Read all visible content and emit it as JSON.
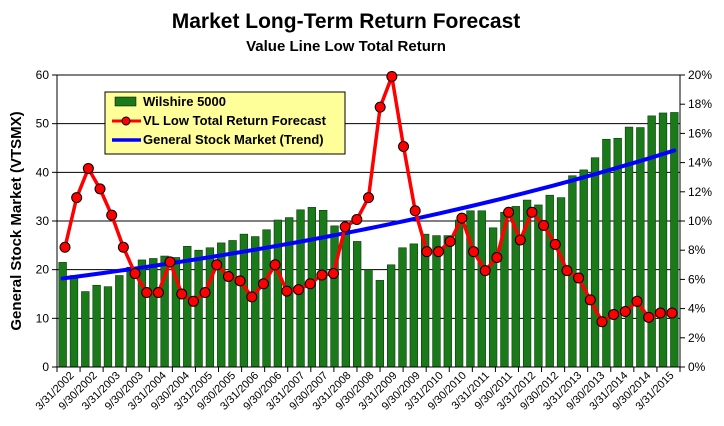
{
  "chart_data": {
    "type": "bar+line",
    "title": "Market Long-Term Return Forecast",
    "subtitle": "Value Line Low Total Return",
    "ylabel": "General Stock Market (VTSMX)",
    "y1lim": [
      0,
      60
    ],
    "y1ticks": [
      "0",
      "10",
      "20",
      "30",
      "40",
      "50",
      "60"
    ],
    "y2lim": [
      0,
      20
    ],
    "y2ticks": [
      "0%",
      "2%",
      "4%",
      "6%",
      "8%",
      "10%",
      "12%",
      "14%",
      "16%",
      "18%",
      "20%"
    ],
    "x_tick_labels": [
      "3/31/2002",
      "9/30/2002",
      "3/31/2003",
      "9/30/2003",
      "3/31/2004",
      "9/30/2004",
      "3/31/2005",
      "9/30/2005",
      "3/31/2006",
      "9/30/2006",
      "3/31/2007",
      "9/30/2007",
      "3/31/2008",
      "9/30/2008",
      "3/31/2009",
      "9/30/2009",
      "3/31/2010",
      "9/30/2010",
      "3/31/2011",
      "9/30/2011",
      "3/31/2012",
      "9/30/2012",
      "3/31/2013",
      "9/30/2013",
      "3/31/2014",
      "9/30/2014",
      "3/31/2015"
    ],
    "series": [
      {
        "name": "Wilshire 5000",
        "type": "bar",
        "axis": "left",
        "color": "#1a7a1a",
        "values": [
          21.5,
          18.8,
          15.5,
          16.8,
          16.5,
          18.8,
          20.5,
          22,
          22.3,
          22.8,
          22.5,
          24.8,
          24,
          24.5,
          25.5,
          26,
          27.3,
          26.8,
          28.2,
          30.2,
          30.7,
          32.3,
          32.8,
          32.2,
          29,
          28.2,
          25.8,
          20,
          17.8,
          21,
          24.5,
          25.3,
          27.3,
          27,
          27,
          30.2,
          32.1,
          32.1,
          28.6,
          31.8,
          33,
          34.3,
          33.3,
          35.3,
          34.8,
          39.3,
          40.5,
          43,
          46.8,
          47,
          49.3,
          49.2,
          51.6,
          52.2,
          52.3
        ]
      },
      {
        "name": "VL Low Total Return Forecast",
        "type": "line",
        "axis": "right",
        "color": "#ff0000",
        "values": [
          8.2,
          11.6,
          13.6,
          12.2,
          10.4,
          8.2,
          6.4,
          5.1,
          5.1,
          7.2,
          5,
          4.5,
          5.1,
          7,
          6.2,
          5.9,
          4.8,
          5.7,
          7,
          5.2,
          5.3,
          5.7,
          6.3,
          6.4,
          9.6,
          10.1,
          11.6,
          17.8,
          19.9,
          15.1,
          10.7,
          7.9,
          7.9,
          8.6,
          10.2,
          7.9,
          6.6,
          7.5,
          10.6,
          8.7,
          10.6,
          9.7,
          8.4,
          6.6,
          6.1,
          4.6,
          3.1,
          3.6,
          3.8,
          4.5,
          3.4,
          3.7,
          3.7
        ]
      },
      {
        "name": "General Stock Market (Trend)",
        "type": "line",
        "axis": "left",
        "color": "#0000ff",
        "start": 18.2,
        "end": 44.5
      }
    ],
    "legend": "upper-left inset",
    "grid": "horizontal"
  },
  "legend_items": [
    {
      "label": "Wilshire 5000",
      "icon": "bar-swatch",
      "color": "#1a7a1a"
    },
    {
      "label": "VL Low Total Return Forecast",
      "icon": "line-marker",
      "color": "#ff0000"
    },
    {
      "label": "General Stock Market (Trend)",
      "icon": "line",
      "color": "#0000ff"
    }
  ]
}
